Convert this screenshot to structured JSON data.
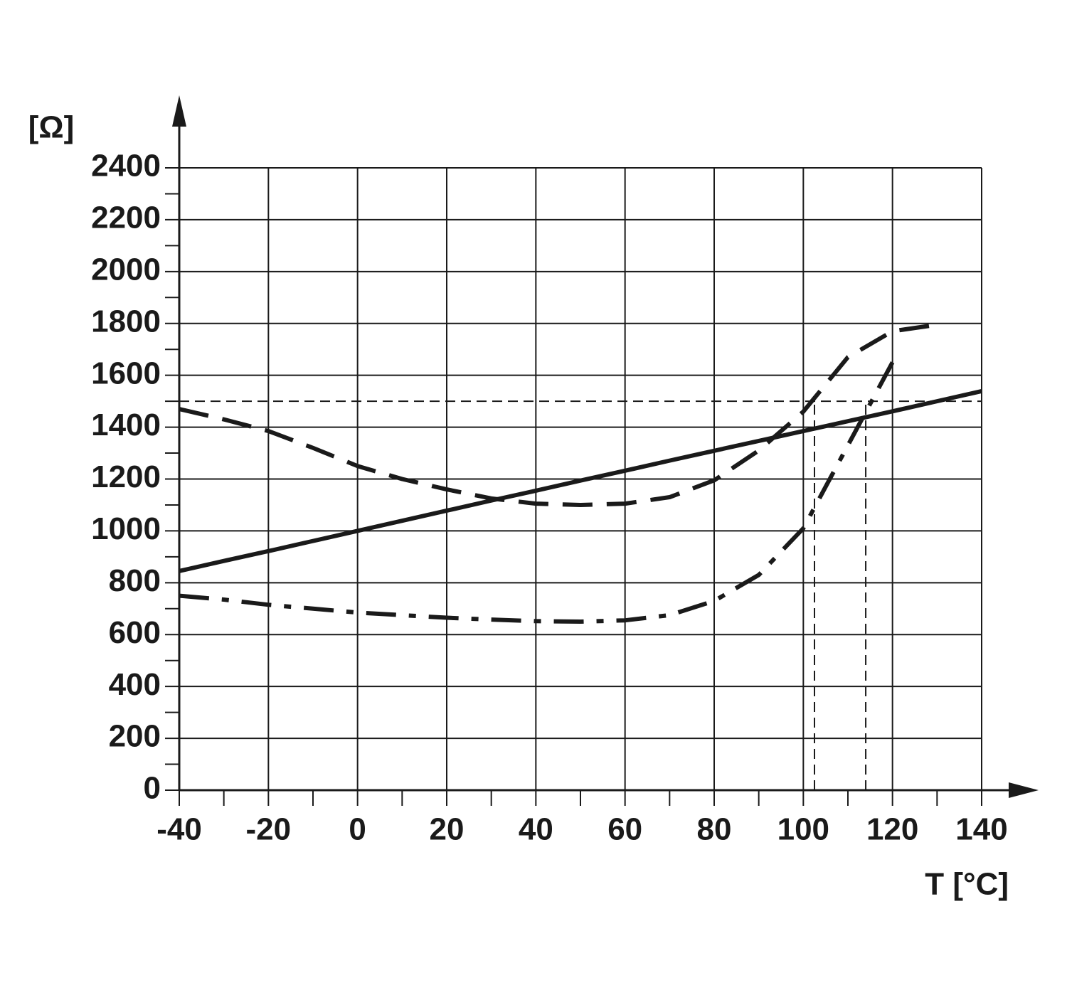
{
  "chart_data": {
    "type": "line",
    "y_label": "[Ω]",
    "x_label": "T [°C]",
    "x": [
      -40,
      -30,
      -20,
      -10,
      0,
      10,
      20,
      30,
      40,
      50,
      60,
      70,
      80,
      90,
      100,
      110,
      120,
      130,
      140
    ],
    "series": [
      {
        "color": "#1a1a1a",
        "style": "solid",
        "values": [
          845,
          884,
          922,
          961,
          1000,
          1039,
          1078,
          1117,
          1155,
          1194,
          1232,
          1271,
          1309,
          1347,
          1385,
          1423,
          1461,
          1500,
          1539
        ]
      },
      {
        "color": "#1a1a1a",
        "style": "dashed",
        "values": [
          1470,
          1430,
          1385,
          1320,
          1250,
          1200,
          1160,
          1125,
          1105,
          1100,
          1105,
          1130,
          1195,
          1310,
          1460,
          1670,
          1770,
          1795,
          null
        ]
      },
      {
        "color": "#1a1a1a",
        "style": "dashdot",
        "values": [
          750,
          735,
          715,
          700,
          685,
          675,
          665,
          658,
          652,
          650,
          655,
          675,
          730,
          830,
          1010,
          1330,
          1650,
          null,
          null
        ]
      }
    ],
    "reference_lines": {
      "y": 1500,
      "x": [
        102.5,
        114
      ]
    },
    "xlim": [
      -40,
      140
    ],
    "xticks": [
      -40,
      -20,
      0,
      20,
      40,
      60,
      80,
      100,
      120,
      140
    ],
    "ylim": [
      0,
      2400
    ],
    "yticks": [
      0,
      200,
      400,
      600,
      800,
      1000,
      1200,
      1400,
      1600,
      1800,
      2000,
      2200,
      2400
    ],
    "grid": true
  }
}
